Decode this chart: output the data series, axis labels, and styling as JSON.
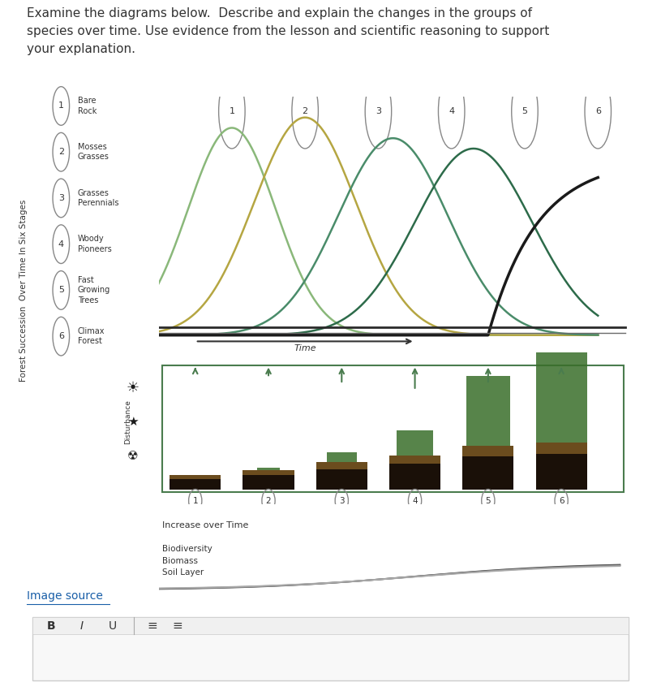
{
  "title_text": "Examine the diagrams below.  Describe and explain the changes in the groups of\nspecies over time. Use evidence from the lesson and scientific reasoning to support\nyour explanation.",
  "ylabel_rotated": "Forest Succession  Over Time In Six Stages",
  "legend_items": [
    {
      "num": "1",
      "label": "Bare\nRock"
    },
    {
      "num": "2",
      "label": "Mosses\nGrasses"
    },
    {
      "num": "3",
      "label": "Grasses\nPerennials"
    },
    {
      "num": "4",
      "label": "Woody\nPioneers"
    },
    {
      "num": "5",
      "label": "Fast\nGrowing\nTrees"
    },
    {
      "num": "6",
      "label": "Climax\nForest"
    }
  ],
  "stage_labels": [
    "1",
    "2",
    "3",
    "4",
    "5",
    "6"
  ],
  "time_arrow_label": "Time",
  "increase_label": "Increase over Time",
  "bio_labels": [
    "Biodiversity",
    "Biomass",
    "Soil Layer"
  ],
  "image_source_label": "Image source",
  "bg_color": "#ffffff",
  "line_colors": {
    "mosses_grasses": "#8ab87a",
    "grasses_perennials": "#b5a642",
    "woody_pioneers": "#4a8c6a",
    "fast_growing_trees": "#2d6b4a",
    "climax_forest": "#1a1a1a"
  },
  "panel_border_color": "#4a7c4e",
  "arrow_color": "#4a7c4e",
  "text_color": "#333333",
  "circle_color": "#888888"
}
